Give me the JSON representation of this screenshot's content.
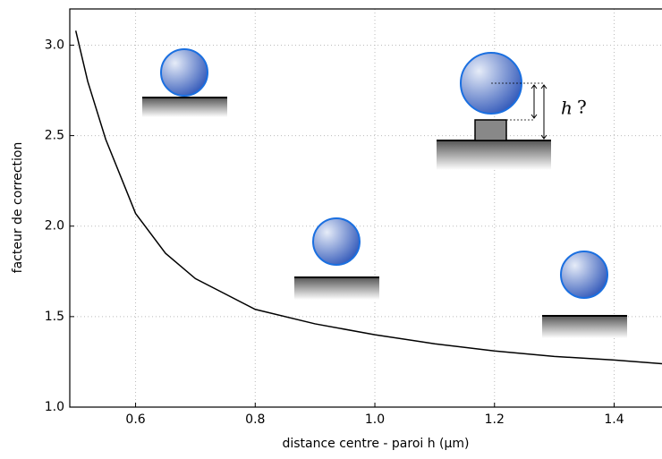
{
  "chart_data": {
    "type": "line",
    "xlabel": "distance centre - paroi h (μm)",
    "ylabel": "facteur de correction",
    "annotations": [
      "h",
      "?"
    ],
    "x": [
      0.5,
      0.52,
      0.55,
      0.6,
      0.65,
      0.7,
      0.8,
      0.9,
      1.0,
      1.1,
      1.2,
      1.3,
      1.4,
      1.48
    ],
    "values": [
      3.08,
      2.8,
      2.48,
      2.07,
      1.85,
      1.71,
      1.54,
      1.46,
      1.4,
      1.35,
      1.31,
      1.28,
      1.26,
      1.24
    ],
    "color": "#000000",
    "xlim": [
      0.49,
      1.48
    ],
    "ylim": [
      1.0,
      3.2
    ],
    "xticks": [
      0.6,
      0.8,
      {
        "value": 1.0,
        "label": "1.0"
      },
      1.2,
      1.4
    ],
    "yticks": [
      {
        "value": 1.0,
        "label": "1.0"
      },
      1.5,
      {
        "value": 2.0,
        "label": "2.0"
      },
      2.5,
      {
        "value": 3.0,
        "label": "3.0"
      }
    ],
    "grid": true
  }
}
